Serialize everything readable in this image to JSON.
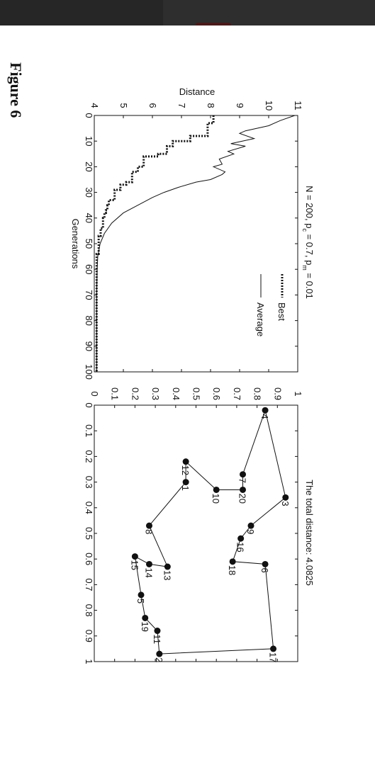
{
  "figure_label": "Figure 6",
  "colors": {
    "topbar": "#262626",
    "ink": "#111111"
  },
  "chart_data": [
    {
      "type": "line",
      "title": "N = 200,  p_c = 0.7,  p_m = 0.01",
      "xlabel": "Generations",
      "ylabel": "Distance",
      "xlim": [
        0,
        100
      ],
      "ylim": [
        4,
        11
      ],
      "xticks": [
        0,
        10,
        20,
        30,
        40,
        50,
        60,
        70,
        80,
        90,
        100
      ],
      "yticks": [
        4,
        5,
        6,
        7,
        8,
        9,
        10,
        11
      ],
      "grid": false,
      "legend": "top-right",
      "series": [
        {
          "name": "Best",
          "style": "dotted",
          "x": [
            0,
            3,
            3,
            8,
            8,
            10,
            10,
            12,
            12,
            15,
            15,
            16,
            16,
            20,
            20,
            22,
            22,
            26,
            26,
            27,
            27,
            29,
            29,
            33,
            33,
            35,
            35,
            37,
            37,
            38,
            38,
            40,
            40,
            44,
            44,
            47,
            47,
            54,
            54,
            100
          ],
          "y": [
            8.1,
            8.1,
            7.9,
            7.9,
            7.3,
            7.3,
            6.7,
            6.7,
            6.5,
            6.5,
            6.2,
            6.2,
            5.7,
            5.7,
            5.5,
            5.5,
            5.3,
            5.3,
            5.1,
            5.1,
            4.9,
            4.9,
            4.7,
            4.7,
            4.5,
            4.5,
            4.45,
            4.45,
            4.4,
            4.4,
            4.35,
            4.35,
            4.3,
            4.3,
            4.22,
            4.22,
            4.15,
            4.15,
            4.08,
            4.08
          ]
        },
        {
          "name": "Average",
          "style": "solid",
          "x": [
            0,
            2,
            4,
            6,
            7,
            9,
            11,
            12,
            14,
            15,
            17,
            19,
            20,
            22,
            23,
            25,
            26,
            28,
            30,
            32,
            35,
            38,
            42,
            46,
            50,
            55,
            60,
            70,
            80,
            90,
            100
          ],
          "y": [
            10.9,
            10.4,
            10.0,
            9.2,
            9.0,
            9.5,
            8.7,
            9.2,
            8.6,
            8.8,
            8.3,
            8.4,
            8.1,
            8.5,
            8.4,
            8.0,
            7.5,
            6.9,
            6.4,
            6.0,
            5.5,
            5.0,
            4.6,
            4.35,
            4.2,
            4.12,
            4.1,
            4.08,
            4.08,
            4.08,
            4.08
          ]
        }
      ]
    },
    {
      "type": "scatter",
      "title": "The total distance: 4.0825",
      "xlim": [
        0,
        1
      ],
      "ylim": [
        0,
        1
      ],
      "xticks": [
        0,
        0.1,
        0.2,
        0.3,
        0.4,
        0.5,
        0.6,
        0.7,
        0.8,
        0.9,
        1
      ],
      "yticks": [
        0,
        0.1,
        0.2,
        0.3,
        0.4,
        0.5,
        0.6,
        0.7,
        0.8,
        0.9,
        1
      ],
      "grid": false,
      "tour_closed": true,
      "points": [
        {
          "label": "4",
          "x": 0.02,
          "y": 0.84
        },
        {
          "label": "3",
          "x": 0.36,
          "y": 0.94
        },
        {
          "label": "9",
          "x": 0.47,
          "y": 0.77
        },
        {
          "label": "16",
          "x": 0.52,
          "y": 0.72
        },
        {
          "label": "18",
          "x": 0.61,
          "y": 0.68
        },
        {
          "label": "6",
          "x": 0.62,
          "y": 0.84
        },
        {
          "label": "17",
          "x": 0.95,
          "y": 0.88
        },
        {
          "label": "2",
          "x": 0.97,
          "y": 0.32
        },
        {
          "label": "11",
          "x": 0.88,
          "y": 0.31
        },
        {
          "label": "19",
          "x": 0.83,
          "y": 0.25
        },
        {
          "label": "5",
          "x": 0.74,
          "y": 0.23
        },
        {
          "label": "15",
          "x": 0.59,
          "y": 0.2
        },
        {
          "label": "14",
          "x": 0.62,
          "y": 0.27
        },
        {
          "label": "13",
          "x": 0.63,
          "y": 0.36
        },
        {
          "label": "8",
          "x": 0.47,
          "y": 0.27
        },
        {
          "label": "1",
          "x": 0.3,
          "y": 0.45
        },
        {
          "label": "12",
          "x": 0.22,
          "y": 0.45
        },
        {
          "label": "10",
          "x": 0.33,
          "y": 0.6
        },
        {
          "label": "20",
          "x": 0.33,
          "y": 0.73
        },
        {
          "label": "7",
          "x": 0.27,
          "y": 0.73
        }
      ]
    }
  ]
}
